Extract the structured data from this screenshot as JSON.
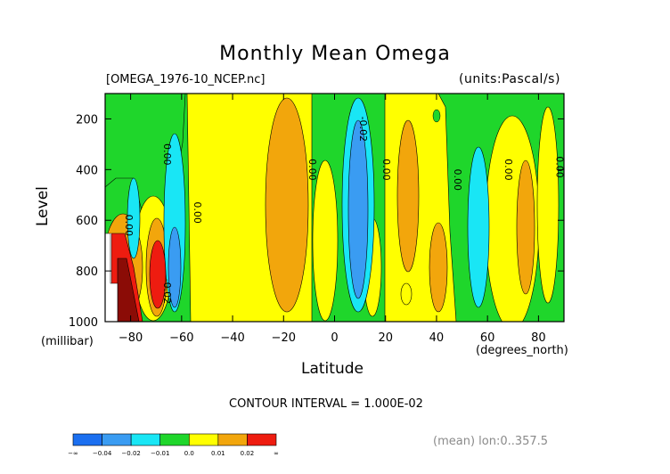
{
  "header": {
    "title": "Monthly Mean Omega",
    "file_label": "[OMEGA_1976-10_NCEP.nc]",
    "units_label": "(units:Pascal/s)"
  },
  "axes": {
    "ylabel": "Level",
    "yunit": "(millibar)",
    "xlabel": "Latitude",
    "xunit": "(degrees_north)"
  },
  "footer": {
    "contour_interval": "CONTOUR INTERVAL = 1.000E-02",
    "mean_note": "(mean) lon:0..357.5"
  },
  "colors": {
    "c1": "#1b6ff0",
    "c2": "#3a9cf2",
    "c3": "#19e6f5",
    "c4": "#1fd62b",
    "c5": "#ffff00",
    "c6": "#f2a60c",
    "c7": "#ee1c10",
    "c8": "#8b0c06"
  },
  "chart_data": {
    "type": "heatmap",
    "title": "Monthly Mean Omega",
    "xlabel": "Latitude",
    "ylabel": "Level",
    "xlim": [
      -90,
      90
    ],
    "ylim": [
      1000,
      100
    ],
    "x_ticks": [
      -80,
      -60,
      -40,
      -20,
      0,
      20,
      40,
      60,
      80
    ],
    "x_tick_labels": [
      "−80",
      "−60",
      "−40",
      "−20",
      "0",
      "20",
      "40",
      "60",
      "80"
    ],
    "y_ticks": [
      200,
      400,
      600,
      800,
      1000
    ],
    "y_tick_labels": [
      "200",
      "400",
      "600",
      "800",
      "1000"
    ],
    "colorbar": {
      "labels": [
        "−∞",
        "−0.04",
        "−0.02",
        "−0.01",
        "0.0",
        "0.01",
        "0.02",
        "∞"
      ]
    },
    "contour_labels": [
      {
        "text": "0.00",
        "lat": -82,
        "level": 620
      },
      {
        "text": "0.00",
        "lat": -67,
        "level": 340
      },
      {
        "text": "0.00",
        "lat": -55,
        "level": 570
      },
      {
        "text": "-0.02",
        "lat": -67,
        "level": 880
      },
      {
        "text": "0.00",
        "lat": -10,
        "level": 400
      },
      {
        "text": "-0.02",
        "lat": 10,
        "level": 240
      },
      {
        "text": "0.00",
        "lat": 19,
        "level": 400
      },
      {
        "text": "0.00",
        "lat": 47,
        "level": 440
      },
      {
        "text": "0.00",
        "lat": 67,
        "level": 400
      },
      {
        "text": "0.00",
        "lat": 87,
        "level": 390
      }
    ]
  }
}
